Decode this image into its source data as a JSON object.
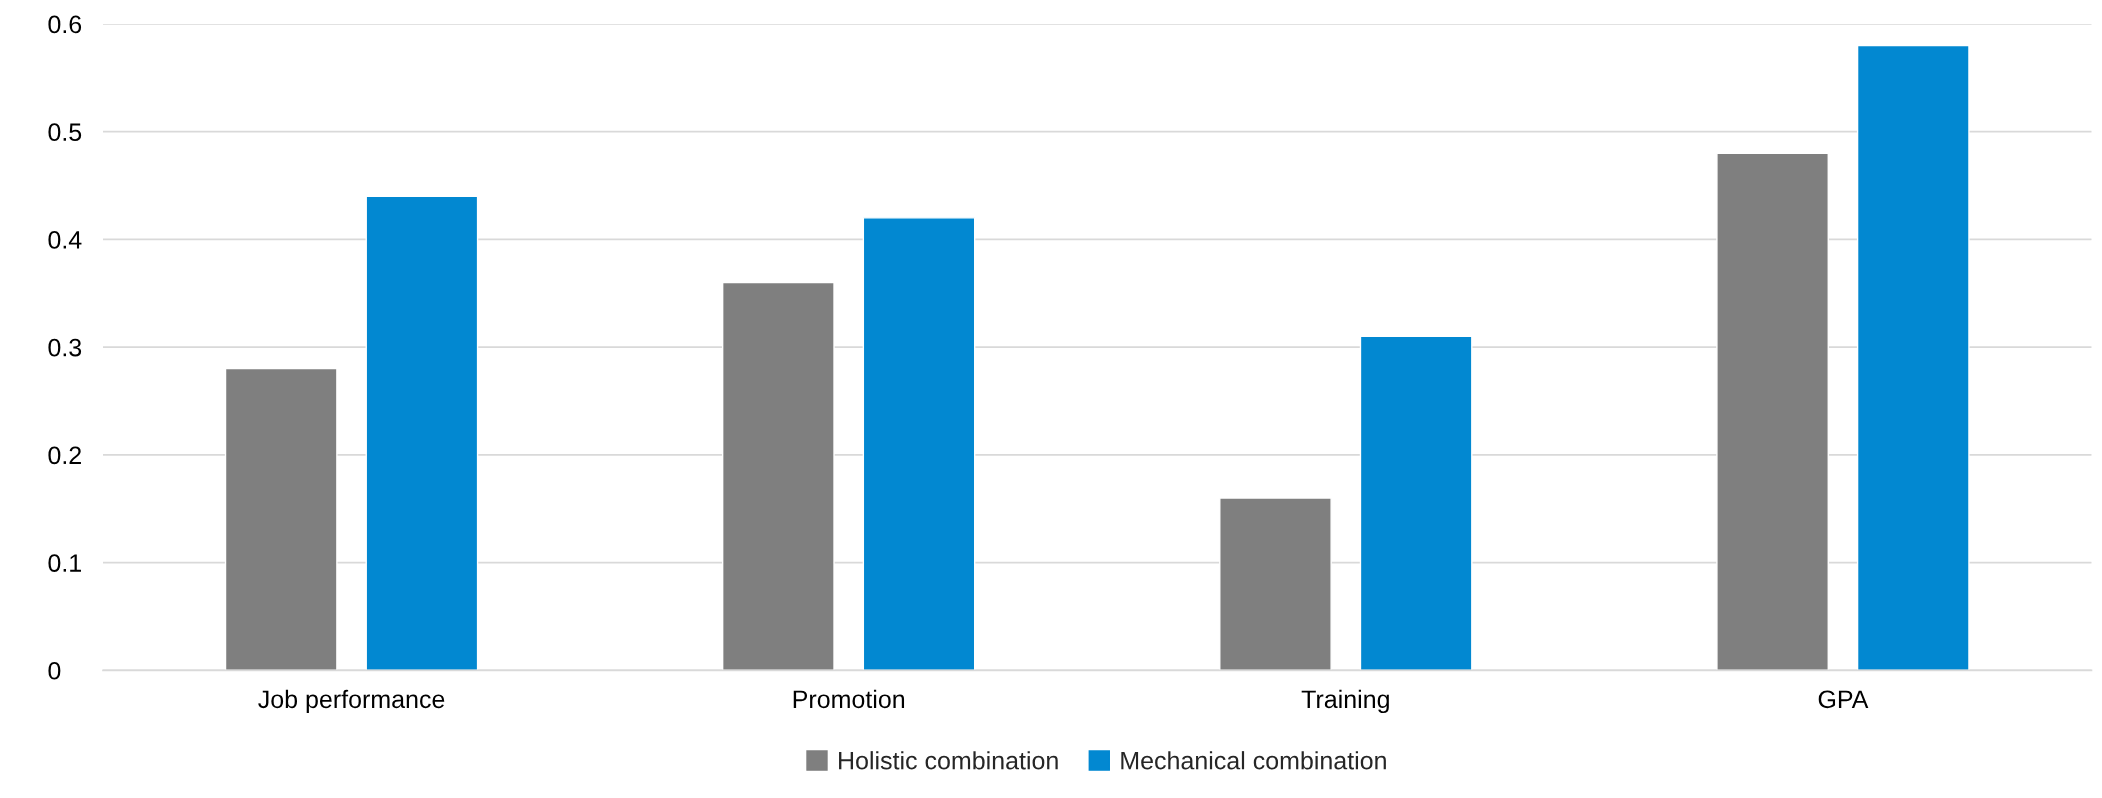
{
  "chart_data": {
    "type": "bar",
    "categories": [
      "Job performance",
      "Promotion",
      "Training",
      "GPA"
    ],
    "series": [
      {
        "name": "Holistic combination",
        "color": "#7f7f7f",
        "values": [
          0.28,
          0.36,
          0.16,
          0.48
        ]
      },
      {
        "name": "Mechanical combination",
        "color": "#0288d1",
        "values": [
          0.44,
          0.42,
          0.31,
          0.58
        ]
      }
    ],
    "ylim": [
      0,
      0.6
    ],
    "yticks": [
      0,
      0.1,
      0.2,
      0.3,
      0.4,
      0.5,
      0.6
    ],
    "grid": "y",
    "legend": "bottom"
  }
}
